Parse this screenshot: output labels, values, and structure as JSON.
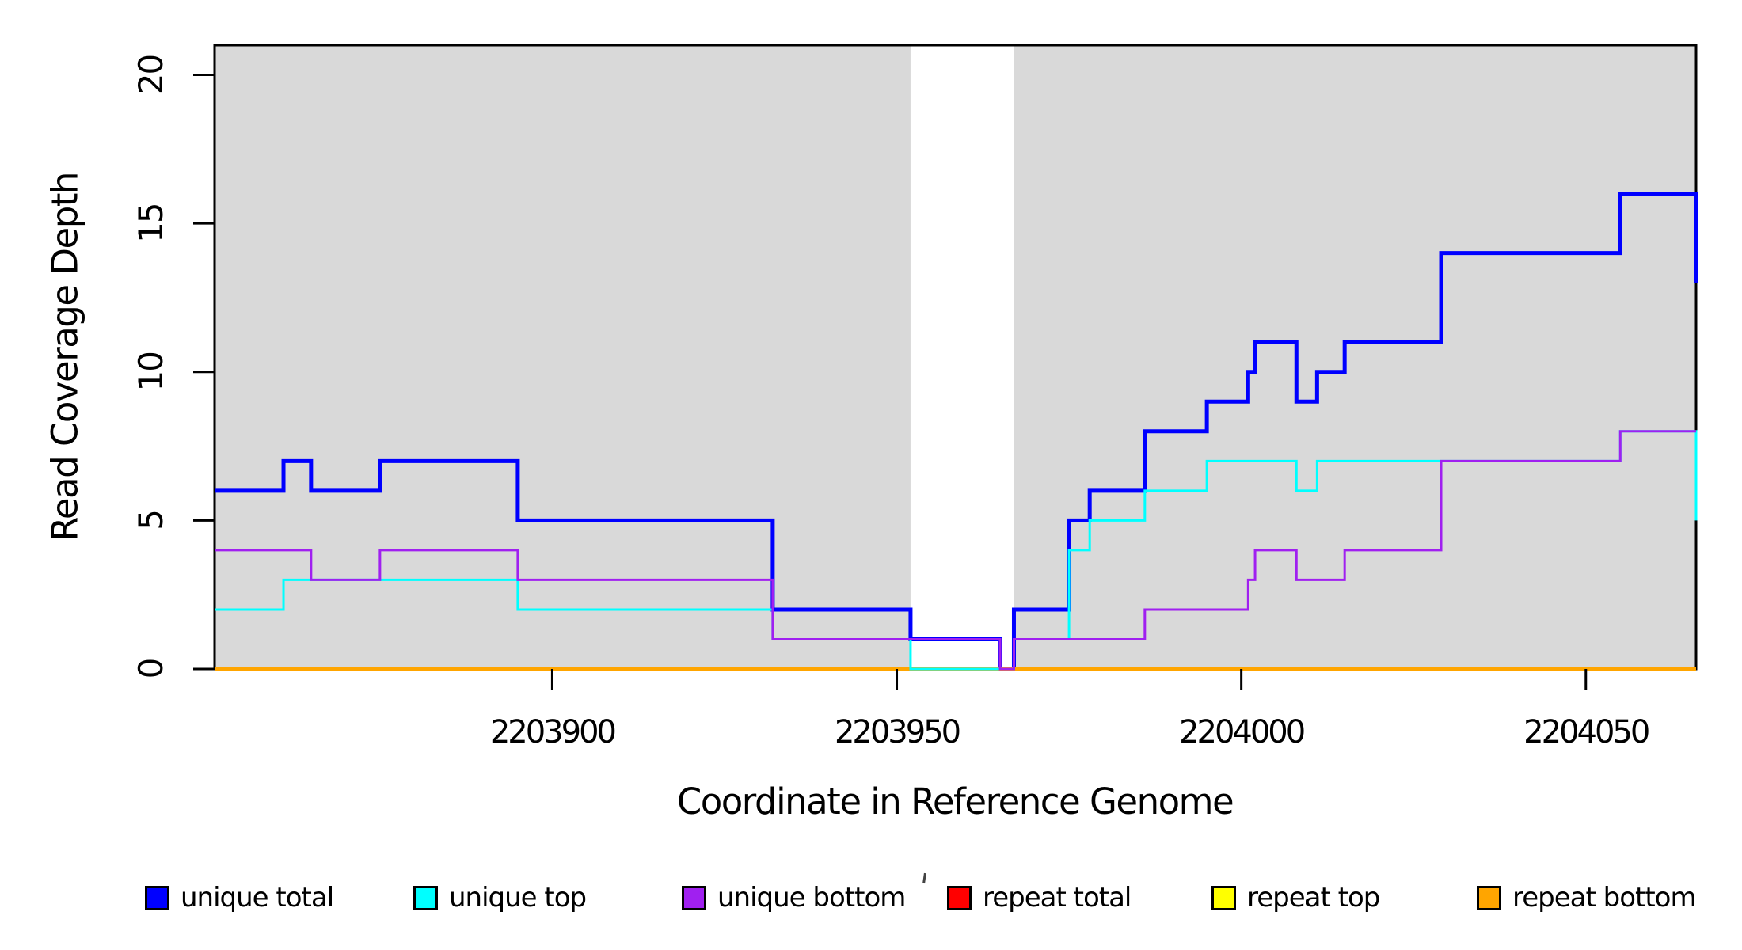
{
  "chart_data": {
    "type": "line",
    "subtype": "step",
    "title": "",
    "xlabel": "Coordinate in Reference Genome",
    "ylabel": "Read Coverage Depth",
    "xlim": [
      2203851,
      2204066
    ],
    "ylim": [
      0,
      21
    ],
    "x_ticks": [
      2203900,
      2203950,
      2204000,
      2204050
    ],
    "x_tick_labels": [
      "2203900",
      "2203950",
      "2204000",
      "2204050"
    ],
    "y_ticks": [
      0,
      5,
      10,
      15,
      20
    ],
    "y_tick_labels": [
      "0",
      "5",
      "10",
      "15",
      "20"
    ],
    "grid": false,
    "background_color": "#ffffff",
    "shaded_color": "#d9d9d9",
    "shaded_regions": [
      {
        "x0": 2203851,
        "x1": 2203952
      },
      {
        "x0": 2203967,
        "x1": 2204066
      }
    ],
    "gap_region": {
      "x0": 2203952,
      "x1": 2203967
    },
    "series": [
      {
        "name": "unique total",
        "color": "#0000ff",
        "width": 5,
        "points": [
          [
            2203851,
            6
          ],
          [
            2203861,
            7
          ],
          [
            2203865,
            6
          ],
          [
            2203875,
            7
          ],
          [
            2203895,
            5
          ],
          [
            2203932,
            2
          ],
          [
            2203952,
            1
          ],
          [
            2203965,
            0
          ],
          [
            2203967,
            2
          ],
          [
            2203975,
            5
          ],
          [
            2203978,
            6
          ],
          [
            2203986,
            8
          ],
          [
            2203995,
            9
          ],
          [
            2204001,
            10
          ],
          [
            2204002,
            11
          ],
          [
            2204008,
            9
          ],
          [
            2204011,
            10
          ],
          [
            2204015,
            11
          ],
          [
            2204029,
            14
          ],
          [
            2204055,
            16
          ],
          [
            2204066,
            13
          ]
        ]
      },
      {
        "name": "repeat total",
        "color": "#ff0000",
        "width": 4,
        "points": [
          [
            2203851,
            0
          ],
          [
            2204066,
            0
          ]
        ]
      },
      {
        "name": "repeat top",
        "color": "#ffff00",
        "width": 4,
        "points": [
          [
            2203851,
            0
          ],
          [
            2204066,
            0
          ]
        ]
      },
      {
        "name": "repeat bottom",
        "color": "#ffa500",
        "width": 4,
        "points": [
          [
            2203851,
            0
          ],
          [
            2204066,
            0
          ]
        ]
      },
      {
        "name": "unique top",
        "color": "#00ffff",
        "width": 3,
        "points": [
          [
            2203851,
            2
          ],
          [
            2203861,
            3
          ],
          [
            2203895,
            2
          ],
          [
            2203932,
            1
          ],
          [
            2203952,
            0
          ],
          [
            2203967,
            1
          ],
          [
            2203975,
            4
          ],
          [
            2203978,
            5
          ],
          [
            2203986,
            6
          ],
          [
            2203995,
            7
          ],
          [
            2204008,
            6
          ],
          [
            2204011,
            7
          ],
          [
            2204055,
            8
          ],
          [
            2204066,
            5
          ]
        ]
      },
      {
        "name": "unique bottom",
        "color": "#a020f0",
        "width": 3,
        "points": [
          [
            2203851,
            4
          ],
          [
            2203865,
            3
          ],
          [
            2203875,
            4
          ],
          [
            2203895,
            3
          ],
          [
            2203932,
            1
          ],
          [
            2203965,
            0
          ],
          [
            2203967,
            1
          ],
          [
            2203986,
            2
          ],
          [
            2204001,
            3
          ],
          [
            2204002,
            4
          ],
          [
            2204008,
            3
          ],
          [
            2204015,
            4
          ],
          [
            2204029,
            7
          ],
          [
            2204055,
            8
          ],
          [
            2204066,
            8
          ]
        ]
      }
    ],
    "legend": {
      "position": "bottom",
      "items": [
        {
          "label": "unique total",
          "color": "#0000ff"
        },
        {
          "label": "unique top",
          "color": "#00ffff"
        },
        {
          "label": "unique bottom",
          "color": "#a020f0"
        },
        {
          "label": "repeat total",
          "color": "#ff0000"
        },
        {
          "label": "repeat top",
          "color": "#ffff00"
        },
        {
          "label": "repeat bottom",
          "color": "#ffa500"
        }
      ]
    }
  }
}
